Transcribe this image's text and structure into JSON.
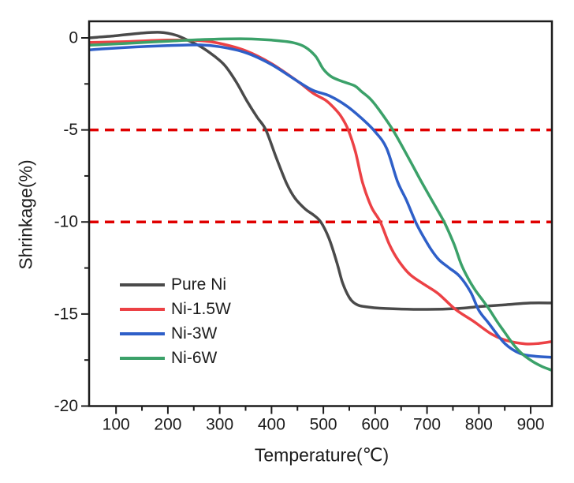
{
  "chart_data": {
    "type": "line",
    "title": "",
    "xlabel": "Temperature(℃)",
    "ylabel": "Shrinkage(%)",
    "x_range": [
      48,
      941
    ],
    "y_range": [
      -20,
      0.9
    ],
    "x_major_ticks": [
      100,
      200,
      300,
      400,
      500,
      600,
      700,
      800,
      900
    ],
    "x_minor_ticks": [
      150,
      250,
      350,
      450,
      550,
      650,
      750,
      850
    ],
    "y_major_ticks": [
      0,
      -5,
      -10,
      -15,
      -20
    ],
    "y_minor_ticks": [
      -2.5,
      -7.5,
      -12.5,
      -17.5
    ],
    "grid": false,
    "axis_color": "#1c1c1c",
    "legend_position": "inside-lower-left",
    "reference_lines": [
      {
        "y": -5,
        "color": "#e00000",
        "style": "dashed"
      },
      {
        "y": -10,
        "color": "#e00000",
        "style": "dashed"
      }
    ],
    "series": [
      {
        "name": "Pure Ni",
        "color": "#4a4a4a",
        "points": [
          [
            48,
            0
          ],
          [
            100,
            0.12
          ],
          [
            145,
            0.25
          ],
          [
            185,
            0.3
          ],
          [
            215,
            0.15
          ],
          [
            240,
            -0.15
          ],
          [
            265,
            -0.5
          ],
          [
            290,
            -1.0
          ],
          [
            310,
            -1.5
          ],
          [
            332,
            -2.4
          ],
          [
            352,
            -3.4
          ],
          [
            372,
            -4.3
          ],
          [
            389,
            -5.0
          ],
          [
            409,
            -6.5
          ],
          [
            429,
            -7.9
          ],
          [
            445,
            -8.7
          ],
          [
            465,
            -9.3
          ],
          [
            480,
            -9.6
          ],
          [
            495,
            -10.0
          ],
          [
            511,
            -10.9
          ],
          [
            526,
            -12.2
          ],
          [
            537,
            -13.3
          ],
          [
            550,
            -14.1
          ],
          [
            562,
            -14.45
          ],
          [
            580,
            -14.6
          ],
          [
            620,
            -14.7
          ],
          [
            700,
            -14.75
          ],
          [
            760,
            -14.7
          ],
          [
            800,
            -14.6
          ],
          [
            850,
            -14.5
          ],
          [
            900,
            -14.4
          ],
          [
            940,
            -14.4
          ]
        ]
      },
      {
        "name": "Ni-1.5W",
        "color": "#ec4145",
        "points": [
          [
            48,
            -0.25
          ],
          [
            120,
            -0.2
          ],
          [
            200,
            -0.12
          ],
          [
            262,
            -0.15
          ],
          [
            300,
            -0.3
          ],
          [
            350,
            -0.7
          ],
          [
            400,
            -1.4
          ],
          [
            450,
            -2.35
          ],
          [
            480,
            -3.0
          ],
          [
            505,
            -3.4
          ],
          [
            522,
            -3.85
          ],
          [
            535,
            -4.3
          ],
          [
            548,
            -5.0
          ],
          [
            562,
            -6.2
          ],
          [
            576,
            -7.9
          ],
          [
            593,
            -9.2
          ],
          [
            610,
            -10.0
          ],
          [
            627,
            -11.2
          ],
          [
            645,
            -12.1
          ],
          [
            667,
            -12.85
          ],
          [
            695,
            -13.4
          ],
          [
            722,
            -13.9
          ],
          [
            755,
            -14.75
          ],
          [
            790,
            -15.4
          ],
          [
            825,
            -16.1
          ],
          [
            855,
            -16.45
          ],
          [
            890,
            -16.62
          ],
          [
            915,
            -16.6
          ],
          [
            940,
            -16.5
          ]
        ]
      },
      {
        "name": "Ni-3W",
        "color": "#2e5fc8",
        "points": [
          [
            48,
            -0.65
          ],
          [
            120,
            -0.52
          ],
          [
            200,
            -0.42
          ],
          [
            262,
            -0.38
          ],
          [
            300,
            -0.48
          ],
          [
            350,
            -0.8
          ],
          [
            400,
            -1.45
          ],
          [
            450,
            -2.35
          ],
          [
            480,
            -2.85
          ],
          [
            512,
            -3.15
          ],
          [
            545,
            -3.7
          ],
          [
            575,
            -4.4
          ],
          [
            600,
            -5.1
          ],
          [
            622,
            -6.0
          ],
          [
            643,
            -7.8
          ],
          [
            660,
            -8.8
          ],
          [
            678,
            -10.0
          ],
          [
            693,
            -10.8
          ],
          [
            708,
            -11.5
          ],
          [
            723,
            -12.05
          ],
          [
            743,
            -12.5
          ],
          [
            763,
            -12.95
          ],
          [
            784,
            -13.8
          ],
          [
            800,
            -14.8
          ],
          [
            819,
            -15.5
          ],
          [
            850,
            -16.6
          ],
          [
            880,
            -17.15
          ],
          [
            910,
            -17.3
          ],
          [
            940,
            -17.35
          ]
        ]
      },
      {
        "name": "Ni-6W",
        "color": "#3ba169",
        "points": [
          [
            48,
            -0.4
          ],
          [
            120,
            -0.3
          ],
          [
            200,
            -0.18
          ],
          [
            280,
            -0.08
          ],
          [
            350,
            -0.05
          ],
          [
            400,
            -0.12
          ],
          [
            440,
            -0.25
          ],
          [
            465,
            -0.5
          ],
          [
            485,
            -1.0
          ],
          [
            500,
            -1.7
          ],
          [
            515,
            -2.1
          ],
          [
            535,
            -2.35
          ],
          [
            560,
            -2.6
          ],
          [
            573,
            -2.9
          ],
          [
            590,
            -3.3
          ],
          [
            606,
            -3.85
          ],
          [
            634,
            -5.0
          ],
          [
            662,
            -6.4
          ],
          [
            687,
            -7.7
          ],
          [
            712,
            -8.95
          ],
          [
            733,
            -10.0
          ],
          [
            752,
            -11.2
          ],
          [
            766,
            -12.3
          ],
          [
            780,
            -13.1
          ],
          [
            793,
            -13.7
          ],
          [
            806,
            -14.2
          ],
          [
            819,
            -14.7
          ],
          [
            835,
            -15.4
          ],
          [
            850,
            -16.0
          ],
          [
            868,
            -16.7
          ],
          [
            885,
            -17.2
          ],
          [
            905,
            -17.6
          ],
          [
            922,
            -17.85
          ],
          [
            940,
            -18.05
          ]
        ]
      }
    ]
  }
}
